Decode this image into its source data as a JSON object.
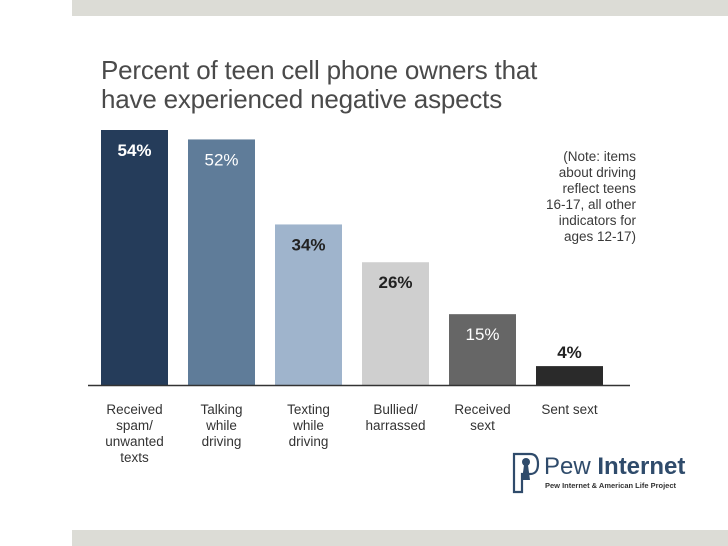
{
  "chart_data": {
    "type": "bar",
    "title_lines": [
      "Percent of teen cell phone owners that",
      "have experienced negative aspects"
    ],
    "categories": [
      [
        "Received",
        "spam/",
        "unwanted",
        "texts"
      ],
      [
        "Talking",
        "while",
        "driving"
      ],
      [
        "Texting",
        "while",
        "driving"
      ],
      [
        "Bullied/",
        "harrassed"
      ],
      [
        "Received",
        "sext"
      ],
      [
        "Sent sext"
      ]
    ],
    "values": [
      54,
      52,
      34,
      26,
      15,
      4
    ],
    "value_labels": [
      "54%",
      "52%",
      "34%",
      "26%",
      "15%",
      "4%"
    ],
    "colors": [
      "#253c5a",
      "#5f7c99",
      "#9fb4cc",
      "#cfcfcf",
      "#666666",
      "#2a2a2a"
    ],
    "label_colors": [
      "#ffffff",
      "#ffffff",
      "#222222",
      "#222222",
      "#ffffff",
      "#222222"
    ],
    "label_inside": [
      true,
      true,
      true,
      true,
      true,
      false
    ],
    "ylim": [
      0,
      54
    ],
    "grid": false,
    "legend": "none",
    "note_lines": [
      "(Note: items",
      "about driving",
      "reflect teens",
      "16-17, all other",
      "indicators for",
      "ages 12-17)"
    ]
  },
  "logo": {
    "word_regular": "Pew ",
    "word_bold": "Internet",
    "subtitle": "Pew Internet & American Life Project"
  }
}
